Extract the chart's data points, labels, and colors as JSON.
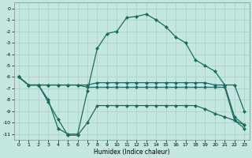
{
  "xlabel": "Humidex (Indice chaleur)",
  "bg_color": "#c4e8e0",
  "grid_color": "#a8ccc8",
  "line_color": "#1a6b60",
  "xlim": [
    -0.5,
    23.5
  ],
  "ylim": [
    -11.5,
    0.5
  ],
  "yticks": [
    0,
    -1,
    -2,
    -3,
    -4,
    -5,
    -6,
    -7,
    -8,
    -9,
    -10,
    -11
  ],
  "xticks": [
    0,
    1,
    2,
    3,
    4,
    5,
    6,
    7,
    8,
    9,
    10,
    11,
    12,
    13,
    14,
    15,
    16,
    17,
    18,
    19,
    20,
    21,
    22,
    23
  ],
  "series1_x": [
    0,
    1,
    2,
    3,
    4,
    5,
    6,
    7,
    8,
    9,
    10,
    11,
    12,
    13,
    14,
    15,
    16,
    17,
    18,
    19,
    20,
    21,
    22,
    23
  ],
  "series1_y": [
    -6.0,
    -6.7,
    -6.7,
    -8.0,
    -10.5,
    -11.0,
    -11.0,
    -7.2,
    -3.5,
    -2.2,
    -2.0,
    -0.8,
    -0.7,
    -0.5,
    -1.0,
    -1.6,
    -2.5,
    -3.0,
    -4.5,
    -5.0,
    -5.5,
    -6.7,
    -6.7,
    -9.0
  ],
  "series2_x": [
    0,
    1,
    2,
    3,
    4,
    5,
    6,
    7,
    8,
    9,
    10,
    11,
    12,
    13,
    14,
    15,
    16,
    17,
    18,
    19,
    20,
    21,
    22,
    23
  ],
  "series2_y": [
    -6.0,
    -6.7,
    -6.7,
    -6.7,
    -6.7,
    -6.7,
    -6.7,
    -6.7,
    -6.5,
    -6.5,
    -6.5,
    -6.5,
    -6.5,
    -6.5,
    -6.5,
    -6.5,
    -6.5,
    -6.5,
    -6.5,
    -6.5,
    -6.7,
    -6.7,
    -9.5,
    -10.2
  ],
  "series3_x": [
    0,
    1,
    2,
    3,
    4,
    5,
    6,
    7,
    8,
    9,
    10,
    11,
    12,
    13,
    14,
    15,
    16,
    17,
    18,
    19,
    20,
    21,
    22,
    23
  ],
  "series3_y": [
    -6.0,
    -6.7,
    -6.7,
    -6.7,
    -6.7,
    -6.7,
    -6.7,
    -6.9,
    -6.9,
    -6.9,
    -6.9,
    -6.9,
    -6.9,
    -6.9,
    -6.9,
    -6.9,
    -6.9,
    -6.9,
    -6.9,
    -6.9,
    -6.9,
    -6.9,
    -9.8,
    -10.5
  ],
  "series4_x": [
    0,
    1,
    2,
    3,
    4,
    5,
    6,
    7,
    8,
    9,
    10,
    11,
    12,
    13,
    14,
    15,
    16,
    17,
    18,
    19,
    20,
    21,
    22,
    23
  ],
  "series4_y": [
    -6.0,
    -6.7,
    -6.7,
    -8.2,
    -9.7,
    -11.1,
    -11.1,
    -10.0,
    -8.5,
    -8.5,
    -8.5,
    -8.5,
    -8.5,
    -8.5,
    -8.5,
    -8.5,
    -8.5,
    -8.5,
    -8.5,
    -8.8,
    -9.2,
    -9.5,
    -9.8,
    -10.2
  ]
}
